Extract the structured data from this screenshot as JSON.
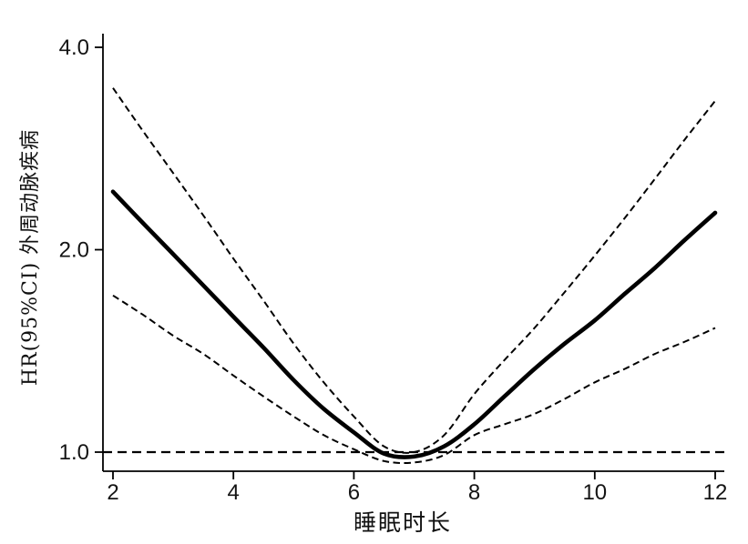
{
  "chart_data": {
    "type": "line",
    "title": "",
    "grid": false,
    "legend": "none",
    "colors": {
      "lines": "#000000",
      "background": "#ffffff"
    },
    "x_axis": {
      "label": "睡眠时长",
      "range": [
        1.83,
        12.17
      ],
      "ticks": [
        {
          "v": 2,
          "label": "2"
        },
        {
          "v": 4,
          "label": "4"
        },
        {
          "v": 6,
          "label": "6"
        },
        {
          "v": 8,
          "label": "8"
        },
        {
          "v": 10,
          "label": "10"
        },
        {
          "v": 12,
          "label": "12"
        }
      ]
    },
    "y_axis": {
      "label": "HR(95%CI) 外周动脉疾病",
      "scale": "log",
      "range": [
        0.93,
        4.35
      ],
      "ticks": [
        {
          "v": 1.0,
          "label": "1.0"
        },
        {
          "v": 2.0,
          "label": "2.0"
        },
        {
          "v": 4.0,
          "label": "4.0"
        }
      ]
    },
    "reference_line_y": 1.0,
    "x": [
      2,
      2.5,
      3,
      3.5,
      4,
      4.5,
      5,
      5.5,
      6,
      6.5,
      7,
      7.5,
      8,
      8.5,
      9,
      9.5,
      10,
      10.5,
      11,
      11.5,
      12
    ],
    "series": [
      {
        "name": "HR",
        "key": "hr-curve",
        "style": "solid",
        "values": [
          2.44,
          2.19,
          1.97,
          1.77,
          1.59,
          1.43,
          1.28,
          1.16,
          1.07,
          0.995,
          0.985,
          1.02,
          1.1,
          1.21,
          1.33,
          1.45,
          1.57,
          1.72,
          1.88,
          2.07,
          2.27
        ]
      },
      {
        "name": "95%CI upper",
        "key": "ci-upper-curve",
        "style": "dashed",
        "values": [
          3.48,
          3.0,
          2.6,
          2.25,
          1.94,
          1.68,
          1.45,
          1.27,
          1.13,
          1.02,
          1.0,
          1.06,
          1.22,
          1.37,
          1.53,
          1.73,
          1.96,
          2.23,
          2.55,
          2.92,
          3.33
        ]
      },
      {
        "name": "95%CI lower",
        "key": "ci-lower-curve",
        "style": "dashed",
        "values": [
          1.71,
          1.6,
          1.49,
          1.4,
          1.3,
          1.21,
          1.13,
          1.06,
          1.01,
          0.97,
          0.965,
          0.99,
          1.06,
          1.1,
          1.14,
          1.2,
          1.27,
          1.33,
          1.4,
          1.46,
          1.53
        ]
      }
    ]
  }
}
